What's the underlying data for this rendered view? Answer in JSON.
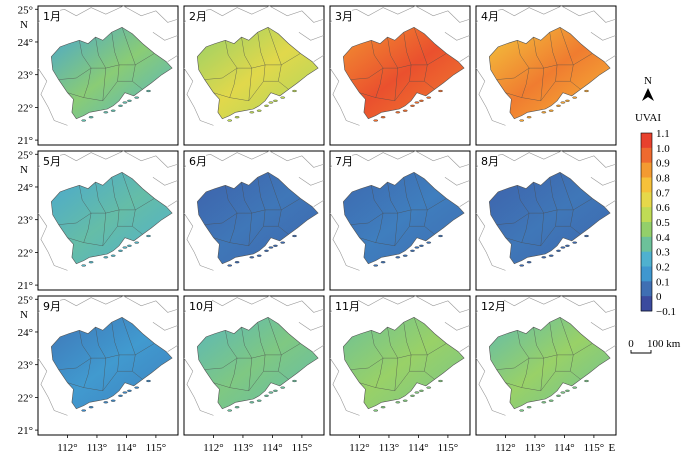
{
  "figure": {
    "panels": [
      {
        "label": "1月",
        "uvai": 0.3,
        "grad": 0.12,
        "tint": "#4fb3d8"
      },
      {
        "label": "2月",
        "uvai": 0.55,
        "grad": 0.1,
        "tint": "#b8d94a"
      },
      {
        "label": "3月",
        "uvai": 0.98,
        "grad": 0.08,
        "tint": "#e8412d"
      },
      {
        "label": "4月",
        "uvai": 0.85,
        "grad": 0.1,
        "tint": "#f3a12c"
      },
      {
        "label": "5月",
        "uvai": 0.25,
        "grad": 0.06,
        "tint": "#3fa1d6"
      },
      {
        "label": "6月",
        "uvai": 0.0,
        "grad": 0.03,
        "tint": "#3b4b9e"
      },
      {
        "label": "7月",
        "uvai": 0.02,
        "grad": 0.03,
        "tint": "#3d4fa0"
      },
      {
        "label": "8月",
        "uvai": 0.0,
        "grad": 0.03,
        "tint": "#3b4b9e"
      },
      {
        "label": "9月",
        "uvai": 0.08,
        "grad": 0.05,
        "tint": "#405ba8"
      },
      {
        "label": "10月",
        "uvai": 0.33,
        "grad": 0.06,
        "tint": "#4fb0d4"
      },
      {
        "label": "11月",
        "uvai": 0.4,
        "grad": 0.06,
        "tint": "#62c3bc"
      },
      {
        "label": "12月",
        "uvai": 0.38,
        "grad": 0.08,
        "tint": "#5cbfc4"
      }
    ],
    "lat_ticks": [
      "25°",
      "24°",
      "23°",
      "22°",
      "21°"
    ],
    "lat_unit": "N",
    "lon_ticks": [
      "112°",
      "113°",
      "114°",
      "115°"
    ],
    "lon_unit": "E"
  },
  "legend": {
    "north_label": "N",
    "title": "UVAI",
    "ticks": [
      "1.1",
      "1.0",
      "0.9",
      "0.8",
      "0.7",
      "0.6",
      "0.5",
      "0.4",
      "0.3",
      "0.2",
      "0.1",
      "0",
      "−0.1"
    ],
    "colors": [
      "#e8412d",
      "#ee6a2f",
      "#f39a31",
      "#f6c13a",
      "#e6d84a",
      "#c0db55",
      "#93cf6a",
      "#6cc19a",
      "#4fb1cf",
      "#3f97cf",
      "#3f6fb3",
      "#3b4b9e"
    ],
    "scalebar_zero": "0",
    "scalebar_label": "100 km"
  }
}
